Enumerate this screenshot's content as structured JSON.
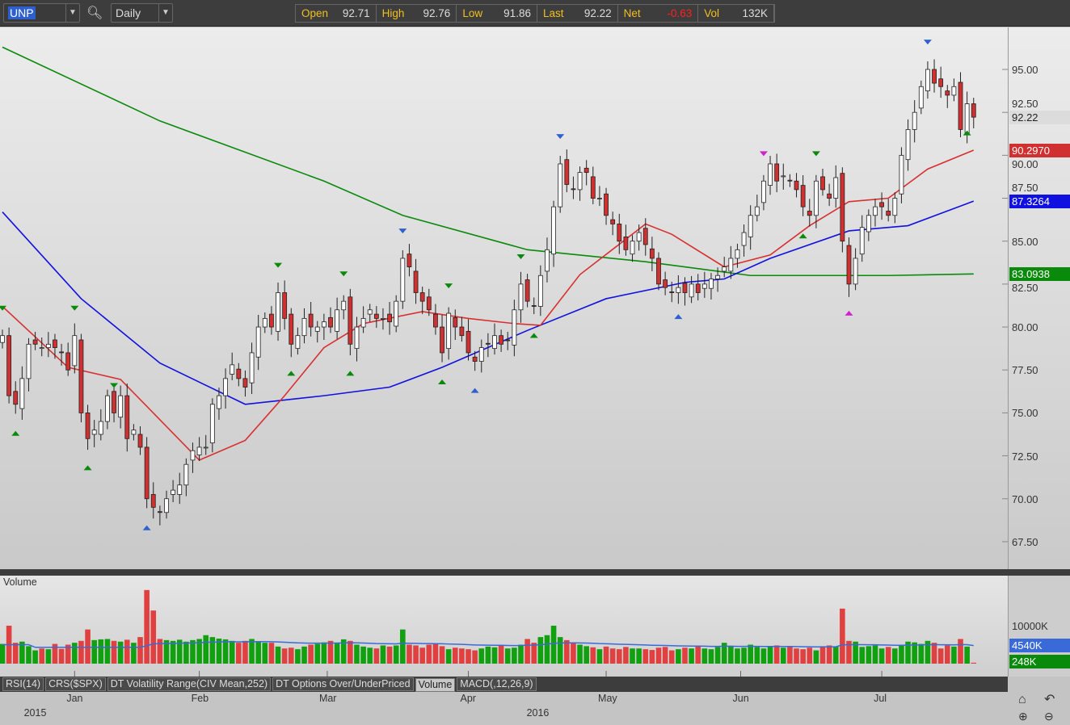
{
  "toolbar": {
    "symbol": "UNP",
    "interval": "Daily",
    "search_icon": "magnifier-icon",
    "quote": [
      {
        "label": "Open",
        "value": "92.71"
      },
      {
        "label": "High",
        "value": "92.76"
      },
      {
        "label": "Low",
        "value": "91.86"
      },
      {
        "label": "Last",
        "value": "92.22"
      },
      {
        "label": "Net",
        "value": "-0.63"
      },
      {
        "label": "Vol",
        "value": "132K"
      }
    ],
    "net_color": "#ff2020"
  },
  "price_axis": {
    "ticks": [
      "95.00",
      "92.50",
      "90.00",
      "87.50",
      "85.00",
      "82.50",
      "80.00",
      "77.50",
      "75.00",
      "72.50",
      "70.00",
      "67.50"
    ],
    "tags": [
      {
        "text": "92.22",
        "value": 92.22,
        "color": "#dcdcdc",
        "text_color": "#222"
      },
      {
        "text": "90.2970",
        "value": 90.297,
        "color": "#d03030",
        "text_color": "#fff"
      },
      {
        "text": "87.3264",
        "value": 87.3264,
        "color": "#1010e0",
        "text_color": "#fff"
      },
      {
        "text": "83.0938",
        "value": 83.0938,
        "color": "#0a8a0a",
        "text_color": "#fff"
      }
    ]
  },
  "volume": {
    "title": "Volume",
    "ticks": [
      "10000K"
    ],
    "tags": [
      {
        "text": "4540K",
        "color": "#3a6ad8"
      },
      {
        "text": "248K",
        "color": "#0a8a0a"
      }
    ]
  },
  "tabs": [
    {
      "label": "RSI(14)"
    },
    {
      "label": "CRS($SPX)"
    },
    {
      "label": "DT Volatility Range(CIV Mean,252)"
    },
    {
      "label": "DT Options Over/UnderPriced"
    },
    {
      "label": "Volume",
      "active": true
    },
    {
      "label": "MACD(,12,26,9)"
    }
  ],
  "date_axis": {
    "months": [
      {
        "label": "Jan",
        "i": 11
      },
      {
        "label": "Feb",
        "i": 30
      },
      {
        "label": "Mar",
        "i": 49.5
      },
      {
        "label": "Apr",
        "i": 71
      },
      {
        "label": "May",
        "i": 92
      },
      {
        "label": "Jun",
        "i": 112.5
      },
      {
        "label": "Jul",
        "i": 134
      }
    ],
    "years": [
      {
        "label": "2015",
        "i": 5
      },
      {
        "label": "2016",
        "i": 81.6
      }
    ]
  },
  "controls": [
    "home-icon",
    "undo-icon",
    "zoom-in-icon",
    "zoom-out-icon"
  ],
  "chart_data": {
    "type": "candlestick",
    "ylim": [
      66,
      97.5
    ],
    "close": [
      79.5,
      76,
      75.5,
      77,
      79,
      79,
      78.8,
      79,
      78.8,
      78.5,
      77.5,
      79.5,
      75,
      73.5,
      74,
      74.5,
      76,
      75,
      76,
      73.5,
      74,
      73,
      70,
      69.5,
      69.2,
      70,
      70.5,
      70.8,
      72,
      72.8,
      73,
      73,
      75.5,
      76,
      77,
      77.8,
      77,
      76.5,
      78.5,
      80,
      80.5,
      80,
      82,
      80.5,
      79,
      79.5,
      80.5,
      80,
      80,
      80.3,
      80,
      81,
      81.5,
      79,
      80,
      80.5,
      81,
      80.5,
      80.5,
      80.3,
      81.5,
      84,
      83.5,
      82,
      81.5,
      81,
      80,
      78.5,
      80.8,
      80,
      79.5,
      78.5,
      78,
      78.8,
      79,
      79.5,
      79,
      79.2,
      81,
      82.5,
      81.5,
      81.2,
      83,
      84.5,
      87,
      89.5,
      88.3,
      88,
      89,
      89,
      87.5,
      87.5,
      86.5,
      86,
      85,
      84.5,
      85,
      85.5,
      84.8,
      84,
      82.5,
      82.3,
      82,
      82.3,
      82,
      82.5,
      82,
      82.5,
      82.8,
      83,
      83.5,
      84,
      84.5,
      85.5,
      86.5,
      87,
      88.5,
      89.5,
      88.5,
      88.8,
      88.5,
      88,
      87,
      86.5,
      88.5,
      88,
      87.5,
      88.7,
      85,
      82.5,
      84,
      85.8,
      86.5,
      87,
      87,
      86.5,
      87.5,
      90,
      91.5,
      92.5,
      94,
      95,
      94.2,
      94,
      93.5,
      94,
      91.5,
      93,
      92.22
    ],
    "volume_k": [
      5200,
      10000,
      5500,
      5800,
      4600,
      3500,
      4000,
      3800,
      5200,
      3900,
      5000,
      5500,
      6000,
      9000,
      6200,
      6400,
      6500,
      6000,
      5800,
      6300,
      5500,
      7000,
      19400,
      14000,
      6500,
      6200,
      6000,
      6300,
      5800,
      6200,
      6500,
      7500,
      7000,
      6600,
      6400,
      6000,
      5500,
      6000,
      6500,
      5800,
      5500,
      5500,
      4500,
      4000,
      4200,
      3800,
      4500,
      5000,
      5200,
      5600,
      6000,
      5500,
      6400,
      6000,
      5000,
      4500,
      4200,
      4000,
      4800,
      4500,
      4800,
      9000,
      5000,
      4800,
      4200,
      5000,
      5200,
      4600,
      3800,
      4200,
      4000,
      3800,
      3500,
      4000,
      4500,
      4300,
      4800,
      4000,
      4200,
      5000,
      6500,
      5500,
      7000,
      7500,
      10000,
      7000,
      6200,
      5500,
      5000,
      4600,
      4300,
      3800,
      4500,
      4000,
      3800,
      4400,
      4000,
      4000,
      3800,
      3600,
      4200,
      4400,
      3500,
      3800,
      4200,
      4000,
      4600,
      4000,
      3800,
      4400,
      5500,
      4500,
      4000,
      4200,
      5000,
      4400,
      4000,
      4400,
      4800,
      4200,
      4600,
      4000,
      3800,
      4200,
      3500,
      4600,
      4800,
      4500,
      14500,
      6000,
      5800,
      4400,
      4600,
      4800,
      4000,
      4400,
      4000,
      4800,
      5800,
      5600,
      5200,
      6000,
      5500,
      4000,
      4800,
      4500,
      6500,
      4500,
      248
    ],
    "moving_averages": [
      {
        "color": "#0a8a0a",
        "points": [
          [
            0,
            96.3
          ],
          [
            24,
            92
          ],
          [
            49,
            88.5
          ],
          [
            61,
            86.5
          ],
          [
            80,
            84.5
          ],
          [
            98,
            83.8
          ],
          [
            114,
            83
          ],
          [
            135,
            83
          ],
          [
            148,
            83.09
          ]
        ]
      },
      {
        "color": "#1010e0",
        "points": [
          [
            0,
            86.7
          ],
          [
            12,
            81.65
          ],
          [
            24,
            77.9
          ],
          [
            37,
            75.5
          ],
          [
            49,
            76
          ],
          [
            59,
            76.5
          ],
          [
            67,
            77.65
          ],
          [
            80,
            79.8
          ],
          [
            92,
            81.65
          ],
          [
            104,
            82.6
          ],
          [
            110,
            82.8
          ],
          [
            117,
            84
          ],
          [
            129,
            85.6
          ],
          [
            138,
            85.9
          ],
          [
            148,
            87.33
          ]
        ]
      },
      {
        "color": "#d83030",
        "points": [
          [
            0,
            81.2
          ],
          [
            10,
            77.65
          ],
          [
            18,
            76.95
          ],
          [
            24,
            74.6
          ],
          [
            30,
            72.25
          ],
          [
            37,
            73.4
          ],
          [
            43,
            76
          ],
          [
            49,
            78.8
          ],
          [
            55,
            80.2
          ],
          [
            64,
            80.9
          ],
          [
            71,
            80.5
          ],
          [
            78,
            80.2
          ],
          [
            82,
            80.1
          ],
          [
            88,
            83.05
          ],
          [
            98,
            86
          ],
          [
            102,
            85.4
          ],
          [
            110,
            83.5
          ],
          [
            117,
            84.2
          ],
          [
            123,
            85.9
          ],
          [
            129,
            87.3
          ],
          [
            135,
            87.5
          ],
          [
            141,
            89.2
          ],
          [
            148,
            90.3
          ]
        ]
      }
    ],
    "markers": [
      {
        "i": 0,
        "dir": "down",
        "color": "#0a8a0a"
      },
      {
        "i": 2,
        "dir": "up",
        "color": "#0a8a0a"
      },
      {
        "i": 11,
        "dir": "down",
        "color": "#0a8a0a"
      },
      {
        "i": 13,
        "dir": "up",
        "color": "#0a8a0a"
      },
      {
        "i": 17,
        "dir": "down",
        "color": "#0a8a0a"
      },
      {
        "i": 22,
        "dir": "up",
        "color": "#3060d0"
      },
      {
        "i": 42,
        "dir": "down",
        "color": "#0a8a0a"
      },
      {
        "i": 44,
        "dir": "up",
        "color": "#0a8a0a"
      },
      {
        "i": 52,
        "dir": "down",
        "color": "#0a8a0a"
      },
      {
        "i": 53,
        "dir": "up",
        "color": "#0a8a0a"
      },
      {
        "i": 61,
        "dir": "down",
        "color": "#3060d0"
      },
      {
        "i": 67,
        "dir": "up",
        "color": "#0a8a0a"
      },
      {
        "i": 68,
        "dir": "down",
        "color": "#0a8a0a"
      },
      {
        "i": 72,
        "dir": "up",
        "color": "#3060d0"
      },
      {
        "i": 79,
        "dir": "down",
        "color": "#0a8a0a"
      },
      {
        "i": 81,
        "dir": "up",
        "color": "#0a8a0a"
      },
      {
        "i": 85,
        "dir": "down",
        "color": "#3060d0"
      },
      {
        "i": 103,
        "dir": "up",
        "color": "#3060d0"
      },
      {
        "i": 116,
        "dir": "down",
        "color": "#d020d0"
      },
      {
        "i": 122,
        "dir": "up",
        "color": "#0a8a0a"
      },
      {
        "i": 124,
        "dir": "down",
        "color": "#0a8a0a"
      },
      {
        "i": 129,
        "dir": "up",
        "color": "#d020d0"
      },
      {
        "i": 141,
        "dir": "down",
        "color": "#3060d0"
      },
      {
        "i": 147,
        "dir": "up",
        "color": "#0a8a0a"
      }
    ]
  }
}
